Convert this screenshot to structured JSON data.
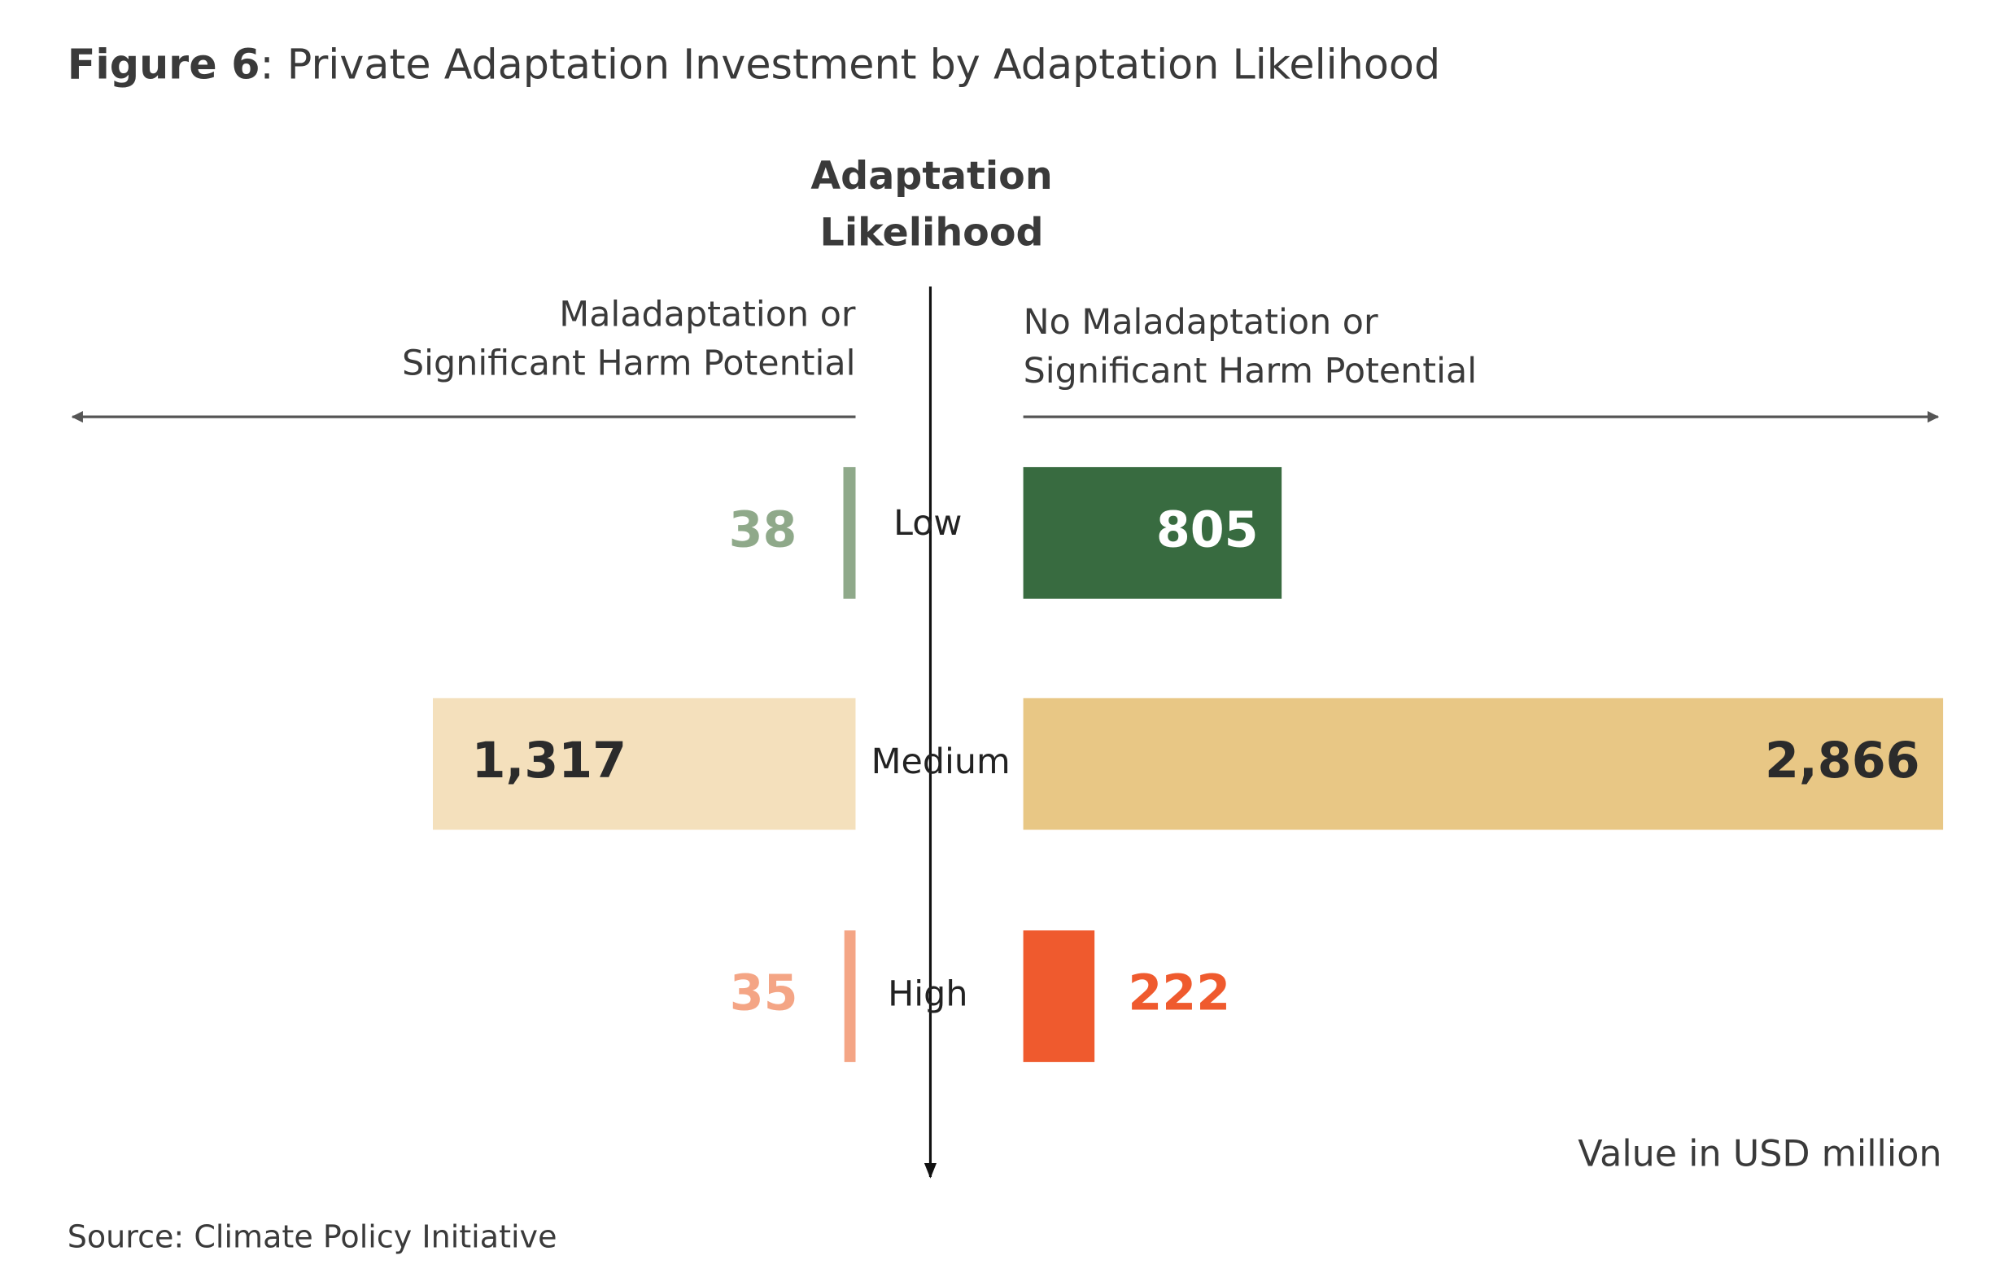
{
  "chart_data": {
    "type": "diverging-bar",
    "title": "Figure 6: Private Adaptation Investment by Adaptation Likelihood",
    "y_label": "Adaptation Likelihood",
    "categories": [
      "Low",
      "Medium",
      "High"
    ],
    "series": [
      {
        "name": "Maladaptation or Significant Harm Potential",
        "side": "left",
        "colors": [
          "#8fa98a",
          "#f4e0bc",
          "#f4a585"
        ],
        "values": [
          38,
          1317,
          35
        ],
        "value_labels": [
          "38",
          "1,317",
          "35"
        ]
      },
      {
        "name": "No Maladaptation or Significant Harm Potential",
        "side": "right",
        "colors": [
          "#386b40",
          "#e8c785",
          "#ef5a2e"
        ],
        "values": [
          805,
          2866,
          222
        ],
        "value_labels": [
          "805",
          "2,866",
          "222"
        ]
      }
    ],
    "unit_note": "Value in USD million",
    "source": "Source: Climate Policy Initiative"
  }
}
